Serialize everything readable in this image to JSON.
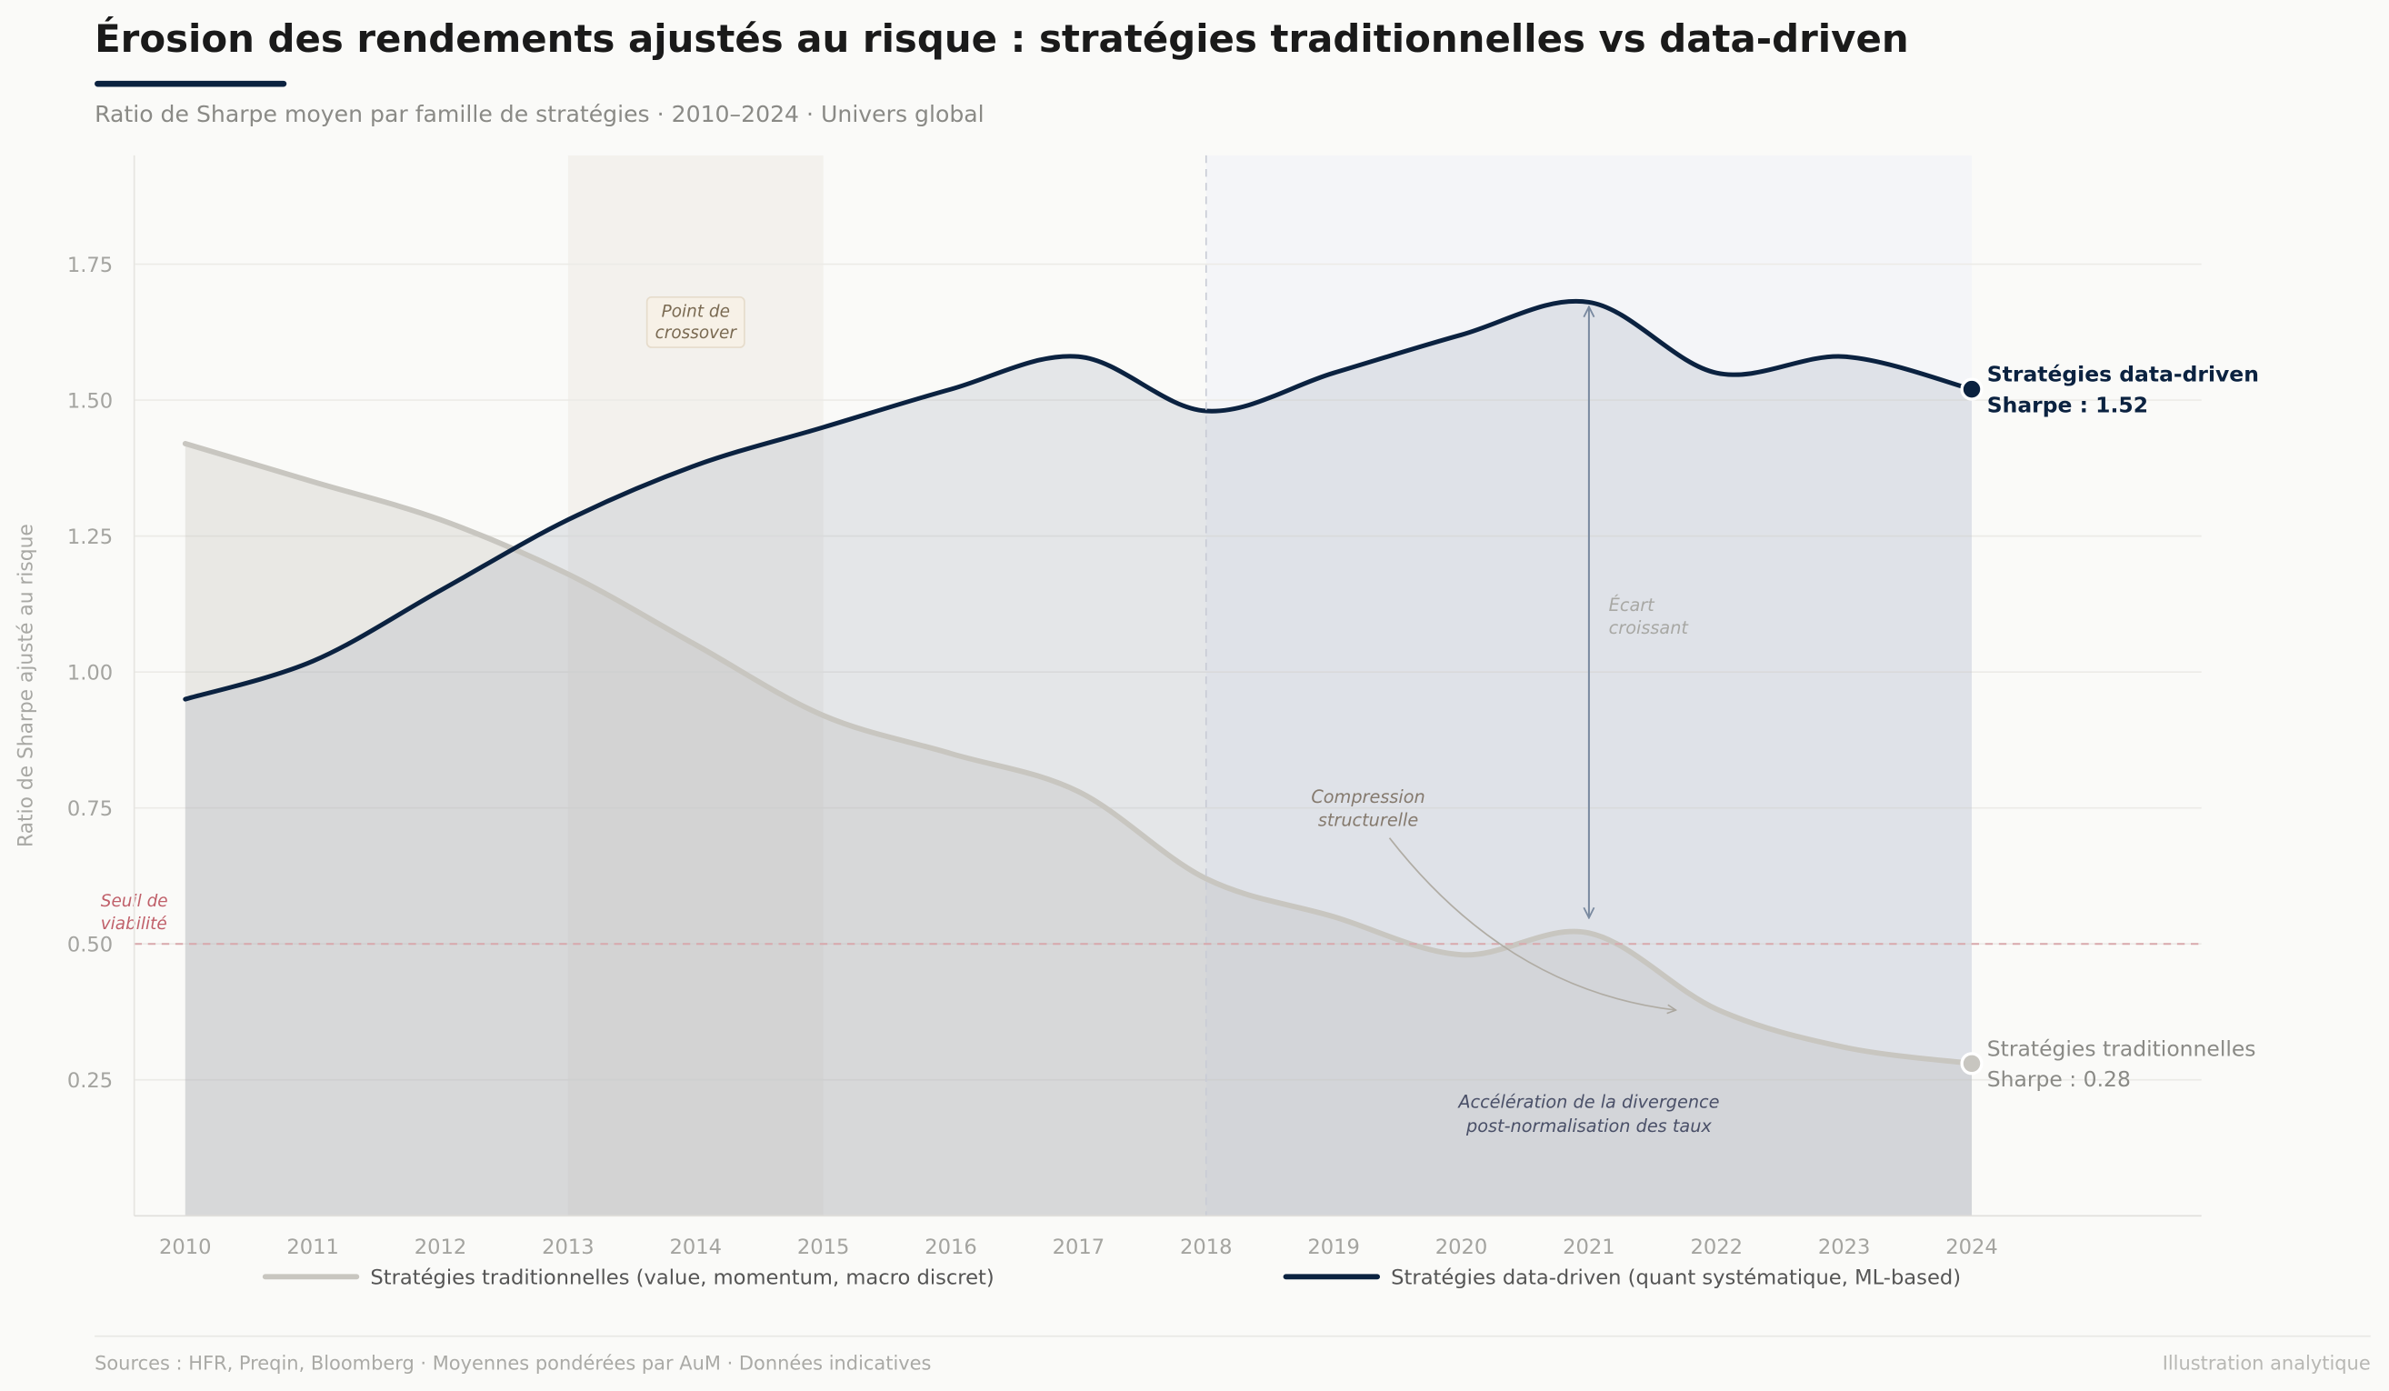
{
  "header": {
    "title": "Érosion des rendements ajustés au risque : stratégies traditionnelles vs data-driven",
    "subtitle": "Ratio de Sharpe moyen par famille de stratégies · 2010–2024 · Univers global"
  },
  "footer": {
    "sources": "Sources : HFR, Preqin, Bloomberg · Moyennes pondérées par AuM · Données indicatives",
    "credit": "Illustration analytique"
  },
  "colors": {
    "data_driven": "#0b2240",
    "traditional": "#c8c6c0",
    "threshold": "#c0606a",
    "crossover_band": "#f3f1ed",
    "post_2018_band": "#f4f5f8"
  },
  "chart_data": {
    "type": "line",
    "ylabel": "Ratio de Sharpe ajusté au risque",
    "xlabel": "",
    "x": [
      2010,
      2011,
      2012,
      2013,
      2014,
      2015,
      2016,
      2017,
      2018,
      2019,
      2020,
      2021,
      2022,
      2023,
      2024
    ],
    "xlim": [
      2009.6,
      2025.8
    ],
    "ylim": [
      0,
      1.95
    ],
    "yticks": [
      "0.25",
      "0.50",
      "0.75",
      "1.00",
      "1.25",
      "1.50",
      "1.75"
    ],
    "xticks": [
      "2010",
      "2011",
      "2012",
      "2013",
      "2014",
      "2015",
      "2016",
      "2017",
      "2018",
      "2019",
      "2020",
      "2021",
      "2022",
      "2023",
      "2024"
    ],
    "grid": true,
    "legend_position": "bottom",
    "series": [
      {
        "name": "Stratégies traditionnelles (value, momentum, macro discret)",
        "values": [
          1.42,
          1.35,
          1.28,
          1.18,
          1.05,
          0.92,
          0.85,
          0.78,
          0.62,
          0.55,
          0.48,
          0.52,
          0.38,
          0.31,
          0.28
        ]
      },
      {
        "name": "Stratégies data-driven (quant systématique, ML-based)",
        "values": [
          0.95,
          1.02,
          1.15,
          1.28,
          1.38,
          1.45,
          1.52,
          1.58,
          1.48,
          1.55,
          1.62,
          1.68,
          1.55,
          1.58,
          1.52
        ]
      }
    ],
    "end_labels": [
      {
        "line1": "Stratégies traditionnelles",
        "line2": "Sharpe : 0.28"
      },
      {
        "line1": "Stratégies data-driven",
        "line2": "Sharpe : 1.52"
      }
    ],
    "threshold": {
      "value": 0.5,
      "label1": "Seuil de",
      "label2": "viabilité"
    },
    "bands": [
      {
        "from": 2013,
        "to": 2015,
        "label1": "Point de",
        "label2": "crossover"
      },
      {
        "from": 2018,
        "to": 2024
      }
    ],
    "annotations": {
      "gap": {
        "x": 2021,
        "from": 0.52,
        "to": 1.68,
        "label1": "Écart",
        "label2": "croissant"
      },
      "compression": {
        "label1": "Compression",
        "label2": "structurelle"
      },
      "divergence": {
        "label1": "Accélération de la divergence",
        "label2": "post-normalisation des taux"
      }
    }
  }
}
